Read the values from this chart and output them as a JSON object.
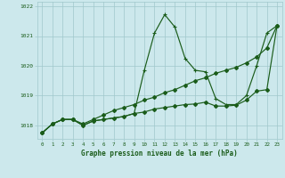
{
  "title": "Graphe pression niveau de la mer (hPa)",
  "bg_color": "#cce8ec",
  "line_color": "#1a5c1a",
  "grid_color": "#a0c8cc",
  "tick_color": "#1a5c1a",
  "ylim": [
    1017.55,
    1022.15
  ],
  "yticks": [
    1018,
    1019,
    1020,
    1021,
    1022
  ],
  "xlim": [
    -0.5,
    23.5
  ],
  "xticks": [
    0,
    1,
    2,
    3,
    4,
    5,
    6,
    7,
    8,
    9,
    10,
    11,
    12,
    13,
    14,
    15,
    16,
    17,
    18,
    19,
    20,
    21,
    22,
    23
  ],
  "series1": [
    1017.75,
    1018.05,
    1018.2,
    1018.2,
    1018.0,
    1018.15,
    1018.2,
    1018.25,
    1018.3,
    1018.4,
    1019.85,
    1021.1,
    1021.72,
    1021.3,
    1020.25,
    1019.85,
    1019.8,
    1018.9,
    1018.7,
    1018.7,
    1019.0,
    1020.0,
    1021.1,
    1021.35
  ],
  "series2": [
    1017.75,
    1018.05,
    1018.2,
    1018.2,
    1018.05,
    1018.2,
    1018.35,
    1018.5,
    1018.6,
    1018.7,
    1018.85,
    1018.95,
    1019.1,
    1019.2,
    1019.35,
    1019.5,
    1019.6,
    1019.75,
    1019.85,
    1019.95,
    1020.1,
    1020.3,
    1020.6,
    1021.35
  ],
  "series3": [
    1017.75,
    1018.05,
    1018.2,
    1018.2,
    1018.0,
    1018.15,
    1018.2,
    1018.25,
    1018.3,
    1018.4,
    1018.45,
    1018.55,
    1018.6,
    1018.65,
    1018.7,
    1018.72,
    1018.78,
    1018.65,
    1018.65,
    1018.68,
    1018.85,
    1019.15,
    1019.2,
    1021.35
  ]
}
